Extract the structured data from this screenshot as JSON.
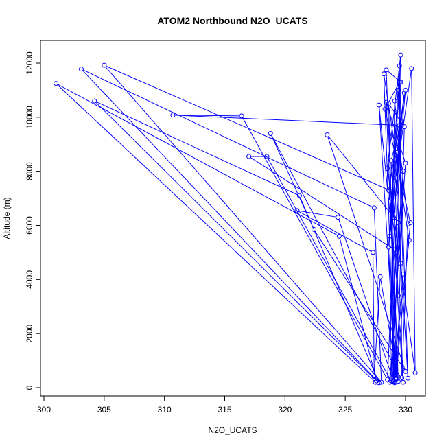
{
  "chart_data": {
    "type": "scatter",
    "title": "ATOM2 Northbound N2O_UCATS",
    "xlabel": "N2O_UCATS",
    "ylabel": "Altitude (m)",
    "xlim": [
      300,
      331
    ],
    "ylim": [
      0,
      12500
    ],
    "xticks": [
      300,
      305,
      310,
      315,
      320,
      325,
      330
    ],
    "yticks": [
      0,
      2000,
      4000,
      6000,
      8000,
      10000,
      12000
    ],
    "grid": false,
    "connected": true,
    "series_color": "#0000ff",
    "points": [
      [
        327.5,
        200
      ],
      [
        301.0,
        11250
      ],
      [
        324.5,
        5600
      ],
      [
        327.6,
        250
      ],
      [
        304.2,
        10600
      ],
      [
        321.2,
        7100
      ],
      [
        327.8,
        180
      ],
      [
        303.1,
        11780
      ],
      [
        327.4,
        6650
      ],
      [
        328.0,
        200
      ],
      [
        305.0,
        11920
      ],
      [
        329.2,
        7200
      ],
      [
        328.5,
        300
      ],
      [
        316.4,
        10050
      ],
      [
        310.7,
        10080
      ],
      [
        329.5,
        9700
      ],
      [
        328.8,
        250
      ],
      [
        318.5,
        8550
      ],
      [
        317.0,
        8550
      ],
      [
        329.1,
        5100
      ],
      [
        329.8,
        200
      ],
      [
        318.8,
        9400
      ],
      [
        322.4,
        5850
      ],
      [
        330.0,
        600
      ],
      [
        323.5,
        9350
      ],
      [
        329.4,
        6100
      ],
      [
        329.0,
        250
      ],
      [
        324.4,
        6300
      ],
      [
        321.0,
        6550
      ],
      [
        327.3,
        5000
      ],
      [
        327.4,
        400
      ],
      [
        327.9,
        4100
      ],
      [
        329.4,
        230
      ],
      [
        328.4,
        11750
      ],
      [
        329.6,
        11300
      ],
      [
        329.2,
        350
      ],
      [
        328.6,
        10500
      ],
      [
        329.9,
        9650
      ],
      [
        329.3,
        220
      ],
      [
        328.4,
        10550
      ],
      [
        330.0,
        8300
      ],
      [
        328.7,
        200
      ],
      [
        329.1,
        10600
      ],
      [
        330.2,
        6050
      ],
      [
        329.7,
        370
      ],
      [
        329.5,
        11900
      ],
      [
        328.6,
        5200
      ],
      [
        329.1,
        180
      ],
      [
        328.2,
        11600
      ],
      [
        330.3,
        5450
      ],
      [
        328.9,
        260
      ],
      [
        329.6,
        12300
      ],
      [
        328.5,
        8100
      ],
      [
        330.8,
        550
      ],
      [
        330.5,
        11800
      ],
      [
        329.2,
        7750
      ],
      [
        330.2,
        350
      ],
      [
        329.4,
        11000
      ],
      [
        329.8,
        4200
      ],
      [
        329.0,
        230
      ],
      [
        328.9,
        6500
      ],
      [
        329.9,
        10900
      ],
      [
        328.8,
        7000
      ],
      [
        329.6,
        4600
      ],
      [
        329.3,
        8700
      ],
      [
        328.7,
        5600
      ],
      [
        329.5,
        11300
      ],
      [
        328.3,
        10300
      ],
      [
        330.4,
        6100
      ],
      [
        329.2,
        300
      ],
      [
        327.8,
        10450
      ],
      [
        329.4,
        3400
      ],
      [
        328.8,
        8400
      ],
      [
        329.7,
        9850
      ],
      [
        329.0,
        6300
      ],
      [
        330.0,
        11000
      ],
      [
        328.6,
        7300
      ],
      [
        329.3,
        5000
      ],
      [
        329.8,
        8000
      ],
      [
        329.1,
        9300
      ]
    ]
  }
}
